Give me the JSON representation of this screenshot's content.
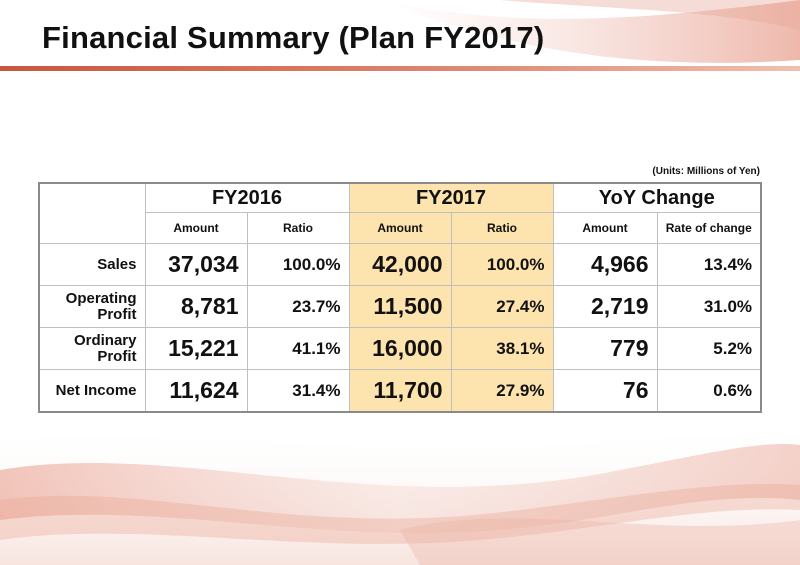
{
  "title": "Financial Summary (Plan FY2017)",
  "units": "(Units: Millions of Yen)",
  "table": {
    "groups": [
      "FY2016",
      "FY2017",
      "YoY Change"
    ],
    "subheaders": [
      "Amount",
      "Ratio",
      "Amount",
      "Ratio",
      "Amount",
      "Rate of change"
    ],
    "rows": [
      {
        "label": [
          "Sales"
        ],
        "fy2016_amount": "37,034",
        "fy2016_ratio": "100.0%",
        "fy2017_amount": "42,000",
        "fy2017_ratio": "100.0%",
        "yoy_amount": "4,966",
        "yoy_rate": "13.4%"
      },
      {
        "label": [
          "Operating",
          "Profit"
        ],
        "fy2016_amount": "8,781",
        "fy2016_ratio": "23.7%",
        "fy2017_amount": "11,500",
        "fy2017_ratio": "27.4%",
        "yoy_amount": "2,719",
        "yoy_rate": "31.0%"
      },
      {
        "label": [
          "Ordinary",
          "Profit"
        ],
        "fy2016_amount": "15,221",
        "fy2016_ratio": "41.1%",
        "fy2017_amount": "16,000",
        "fy2017_ratio": "38.1%",
        "yoy_amount": "779",
        "yoy_rate": "5.2%"
      },
      {
        "label": [
          "Net Income"
        ],
        "fy2016_amount": "11,624",
        "fy2016_ratio": "31.4%",
        "fy2017_amount": "11,700",
        "fy2017_ratio": "27.9%",
        "yoy_amount": "76",
        "yoy_rate": "0.6%"
      }
    ]
  },
  "colors": {
    "highlight": "#fde3ad",
    "accent": "#c8563e"
  }
}
